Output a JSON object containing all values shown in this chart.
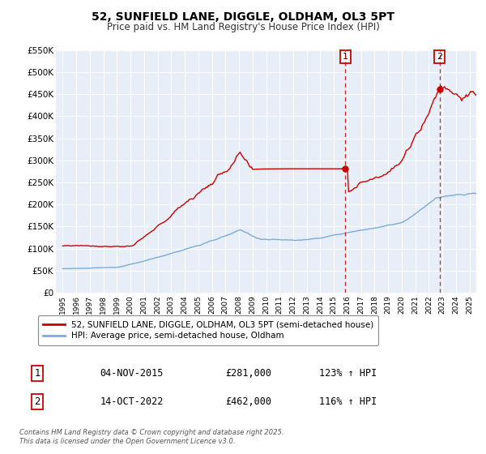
{
  "title": "52, SUNFIELD LANE, DIGGLE, OLDHAM, OL3 5PT",
  "subtitle": "Price paid vs. HM Land Registry's House Price Index (HPI)",
  "ylim": [
    0,
    550000
  ],
  "yticks": [
    0,
    50000,
    100000,
    150000,
    200000,
    250000,
    300000,
    350000,
    400000,
    450000,
    500000,
    550000
  ],
  "ytick_labels": [
    "£0",
    "£50K",
    "£100K",
    "£150K",
    "£200K",
    "£250K",
    "£300K",
    "£350K",
    "£400K",
    "£450K",
    "£500K",
    "£550K"
  ],
  "hpi_color": "#7aabdc",
  "price_color": "#cc0000",
  "vline_color": "#cc0000",
  "marker1_date": 2015.84,
  "marker2_date": 2022.79,
  "marker1_price": 281000,
  "marker2_price": 462000,
  "legend_label1": "52, SUNFIELD LANE, DIGGLE, OLDHAM, OL3 5PT (semi-detached house)",
  "legend_label2": "HPI: Average price, semi-detached house, Oldham",
  "table_row1": [
    "1",
    "04-NOV-2015",
    "£281,000",
    "123% ↑ HPI"
  ],
  "table_row2": [
    "2",
    "14-OCT-2022",
    "£462,000",
    "116% ↑ HPI"
  ],
  "footer": "Contains HM Land Registry data © Crown copyright and database right 2025.\nThis data is licensed under the Open Government Licence v3.0.",
  "background_color": "#ffffff",
  "plot_bg_color": "#e8eef8"
}
